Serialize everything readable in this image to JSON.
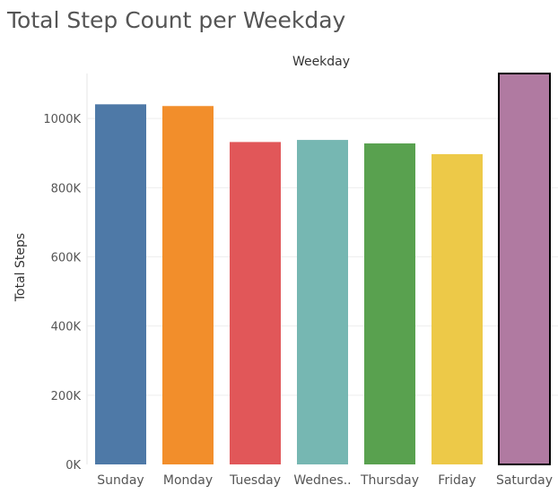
{
  "page": {
    "title": "Total Step Count per Weekday"
  },
  "colors": {
    "Sunday": "#4e79a7",
    "Monday": "#f28e2b",
    "Tuesday": "#e15759",
    "Wednes..": "#76b7b2",
    "Thursday": "#59a14f",
    "Friday": "#edc948",
    "Saturday": "#b07aa1",
    "gridline": "#eeeeee",
    "axis_text": "#555555"
  },
  "chart_data": {
    "type": "bar",
    "title": "Total Step Count per Weekday",
    "xlabel": "Weekday",
    "ylabel": "Total Steps",
    "categories": [
      "Sunday",
      "Monday",
      "Tuesday",
      "Wednes..",
      "Thursday",
      "Friday",
      "Saturday"
    ],
    "values": [
      1041000,
      1036000,
      932000,
      938000,
      928000,
      897000,
      1130000
    ],
    "ylim": [
      0,
      1130000
    ],
    "yticks": [
      0,
      200000,
      400000,
      600000,
      800000,
      1000000
    ],
    "ytick_labels": [
      "0K",
      "200K",
      "400K",
      "600K",
      "800K",
      "1000K"
    ],
    "highlighted": "Saturday",
    "grid": true,
    "legend": "none"
  }
}
